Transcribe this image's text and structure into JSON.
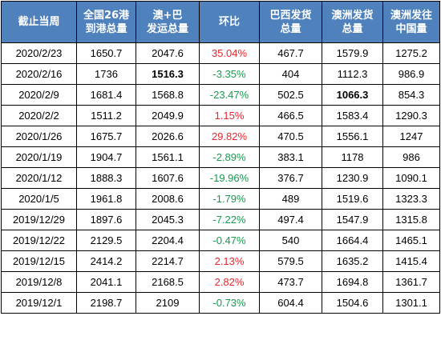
{
  "headers": [
    "截止当周",
    "全国26港\n到港总量",
    "澳+巴\n发运总量",
    "环比",
    "巴西发货\n总量",
    "澳洲发货\n总量",
    "澳洲发往\n中国量"
  ],
  "colors": {
    "header_bg": "#4f81bd",
    "header_text": "#ffffff",
    "positive": "#e8262e",
    "negative": "#169b4e"
  },
  "rows": [
    [
      "2020/2/23",
      "1650.7",
      "2047.6",
      "35.04%",
      "467.7",
      "1579.9",
      "1275.2"
    ],
    [
      "2020/2/16",
      "1736",
      "1516.3",
      "-3.35%",
      "404",
      "1112.3",
      "986.9"
    ],
    [
      "2020/2/9",
      "1681.4",
      "1568.8",
      "-23.47%",
      "502.5",
      "1066.3",
      "854.3"
    ],
    [
      "2020/2/2",
      "1511.2",
      "2049.9",
      "1.15%",
      "466.5",
      "1583.4",
      "1290.3"
    ],
    [
      "2020/1/26",
      "1675.7",
      "2026.6",
      "29.82%",
      "470.5",
      "1556.1",
      "1247"
    ],
    [
      "2020/1/19",
      "1904.7",
      "1561.1",
      "-2.89%",
      "383.1",
      "1178",
      "986"
    ],
    [
      "2020/1/12",
      "1888.3",
      "1607.6",
      "-19.96%",
      "376.7",
      "1230.9",
      "1090.1"
    ],
    [
      "2020/1/5",
      "1961.8",
      "2008.6",
      "-1.79%",
      "489",
      "1519.6",
      "1323.3"
    ],
    [
      "2019/12/29",
      "1897.6",
      "2045.3",
      "-7.22%",
      "497.4",
      "1547.9",
      "1315.8"
    ],
    [
      "2019/12/22",
      "2129.5",
      "2204.4",
      "-0.47%",
      "540",
      "1664.4",
      "1465.1"
    ],
    [
      "2019/12/15",
      "2414.2",
      "2214.7",
      "2.13%",
      "579.5",
      "1635.2",
      "1415.4"
    ],
    [
      "2019/12/8",
      "2041.1",
      "2168.5",
      "2.82%",
      "473.7",
      "1694.8",
      "1361.7"
    ],
    [
      "2019/12/1",
      "2198.7",
      "2109",
      "-0.73%",
      "604.4",
      "1504.6",
      "1301.1"
    ]
  ],
  "bold_cells": [
    {
      "row": 1,
      "col": 2
    },
    {
      "row": 2,
      "col": 5
    }
  ]
}
